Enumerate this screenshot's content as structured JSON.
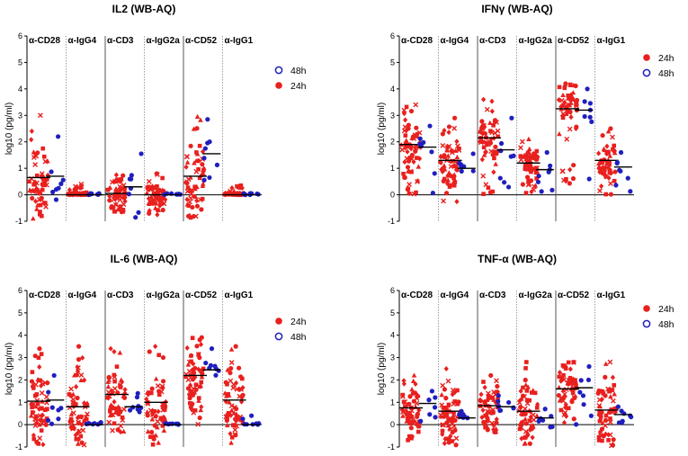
{
  "chart_data": [
    {
      "type": "scatter",
      "title": "IL2 (WB-AQ)",
      "ylabel": "log10 (pg/ml)",
      "ylim": [
        -1,
        6
      ],
      "yticks": [
        "-1",
        "0",
        "1",
        "2",
        "3",
        "4",
        "5",
        "6"
      ],
      "groups": [
        "α-CD28",
        "α-IgG4",
        "α-CD3",
        "α-IgG2a",
        "α-CD52",
        "α-IgG1"
      ],
      "legend": [
        {
          "label": "48h",
          "color": "#1f1fbf",
          "style": "open"
        },
        {
          "label": "24h",
          "color": "#e8201e",
          "style": "filled"
        }
      ],
      "series": [
        {
          "name": "24h",
          "color": "#e8201e",
          "medians": [
            0.65,
            0.0,
            0.05,
            0.0,
            0.7,
            0.0
          ],
          "maxima": [
            3.0,
            0.4,
            0.75,
            0.8,
            2.95,
            0.35
          ]
        },
        {
          "name": "48h",
          "color": "#1f1fbf",
          "medians": [
            0.7,
            0.0,
            0.3,
            0.0,
            1.55,
            0.0
          ],
          "maxima": [
            2.2,
            0.05,
            1.55,
            0.05,
            2.85,
            0.05
          ]
        }
      ]
    },
    {
      "type": "scatter",
      "title": "IFNγ (WB-AQ)",
      "ylabel": "log10 (pg/ml)",
      "ylim": [
        -1,
        6
      ],
      "yticks": [
        "-1",
        "0",
        "1",
        "2",
        "3",
        "4",
        "5",
        "6"
      ],
      "groups": [
        "α-CD28",
        "α-IgG4",
        "α-CD3",
        "α-IgG2a",
        "α-CD52",
        "α-IgG1"
      ],
      "legend": [
        {
          "label": "24h",
          "color": "#e8201e",
          "style": "filled"
        },
        {
          "label": "48h",
          "color": "#1f1fbf",
          "style": "open"
        }
      ],
      "series": [
        {
          "name": "24h",
          "color": "#e8201e",
          "medians": [
            1.9,
            1.3,
            2.15,
            1.2,
            3.25,
            1.3
          ],
          "maxima": [
            3.4,
            2.9,
            3.6,
            2.1,
            4.2,
            2.5
          ]
        },
        {
          "name": "48h",
          "color": "#1f1fbf",
          "medians": [
            1.8,
            1.0,
            1.7,
            0.95,
            3.2,
            1.05
          ],
          "maxima": [
            2.6,
            1.55,
            2.9,
            1.6,
            4.0,
            1.6
          ]
        }
      ]
    },
    {
      "type": "scatter",
      "title": "IL-6 (WB-AQ)",
      "ylabel": "log10 (pg/ml)",
      "ylim": [
        -1,
        6
      ],
      "yticks": [
        "-1",
        "0",
        "1",
        "2",
        "3",
        "4",
        "5",
        "6"
      ],
      "groups": [
        "α-CD28",
        "α-IgG4",
        "α-CD3",
        "α-IgG2a",
        "α-CD52",
        "α-IgG1"
      ],
      "legend": [
        {
          "label": "24h",
          "color": "#e8201e",
          "style": "filled"
        },
        {
          "label": "48h",
          "color": "#1f1fbf",
          "style": "open"
        }
      ],
      "series": [
        {
          "name": "24h",
          "color": "#e8201e",
          "medians": [
            1.05,
            0.8,
            1.35,
            1.0,
            2.2,
            1.1
          ],
          "maxima": [
            3.4,
            3.5,
            3.4,
            3.5,
            3.9,
            3.5
          ]
        },
        {
          "name": "48h",
          "color": "#1f1fbf",
          "medians": [
            1.1,
            0.0,
            0.8,
            0.0,
            2.45,
            0.0
          ],
          "maxima": [
            2.2,
            0.1,
            1.4,
            0.05,
            3.4,
            0.4
          ]
        }
      ]
    },
    {
      "type": "scatter",
      "title": "TNF-α (WB-AQ)",
      "ylabel": "log10 (pg/ml)",
      "ylim": [
        -1,
        6
      ],
      "yticks": [
        "-1",
        "0",
        "1",
        "2",
        "3",
        "4",
        "5",
        "6"
      ],
      "groups": [
        "α-CD28",
        "α-IgG4",
        "α-CD3",
        "α-IgG2a",
        "α-CD52",
        "α-IgG1"
      ],
      "legend": [
        {
          "label": "24h",
          "color": "#e8201e",
          "style": "filled"
        },
        {
          "label": "48h",
          "color": "#1f1fbf",
          "style": "open"
        }
      ],
      "series": [
        {
          "name": "24h",
          "color": "#e8201e",
          "medians": [
            0.75,
            0.6,
            0.85,
            0.6,
            1.6,
            0.65
          ],
          "maxima": [
            2.2,
            2.5,
            2.2,
            2.8,
            2.8,
            2.8
          ]
        },
        {
          "name": "48h",
          "color": "#1f1fbf",
          "medians": [
            0.95,
            0.3,
            0.8,
            0.3,
            1.65,
            0.45
          ],
          "maxima": [
            1.5,
            0.6,
            1.3,
            0.7,
            2.6,
            0.8
          ]
        }
      ]
    }
  ]
}
